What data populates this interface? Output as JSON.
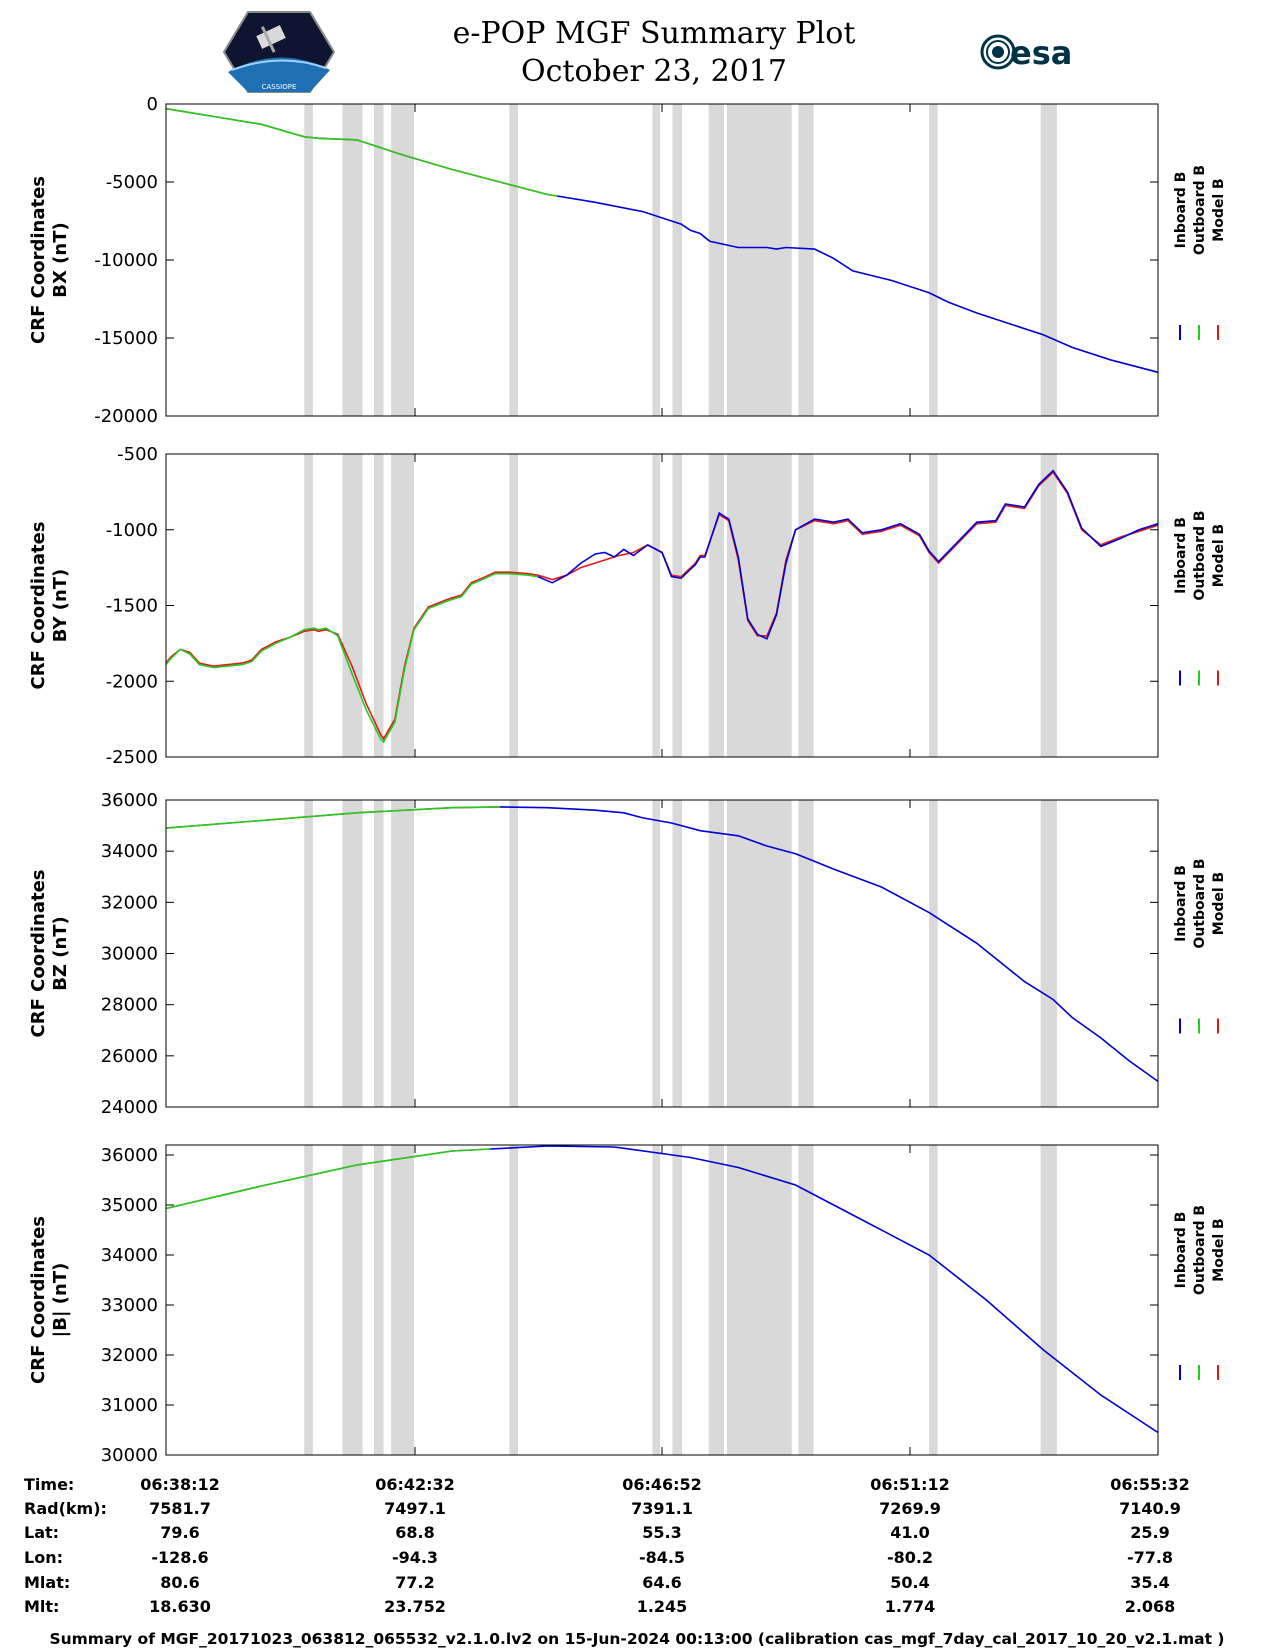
{
  "title_line1": "e-POP MGF Summary Plot",
  "title_line2": "October 23, 2017",
  "esa_logo_text": "esa",
  "cassiope_logo_text": "CASSIOPE",
  "footer": "Summary of MGF_20171023_063812_065532_v2.1.0.lv2 on 15-Jun-2024 00:13:00 (calibration cas_mgf_7day_cal_2017_10_20_v2.1.mat )",
  "colors": {
    "inboard": "#0000d6",
    "outboard": "#22cc22",
    "model": "#e81818",
    "gap": "#d9d9d9"
  },
  "legend": [
    "Inboard B",
    "Outboard B",
    "Model B"
  ],
  "orbit_table": {
    "labels": [
      "Time:",
      "Rad(km):",
      "Lat:",
      "Lon:",
      "Mlat:",
      "Mlt:"
    ],
    "columns": [
      [
        "06:38:12",
        "7581.7",
        "79.6",
        "-128.6",
        "80.6",
        "18.630"
      ],
      [
        "06:42:32",
        "7497.1",
        "68.8",
        "-94.3",
        "77.2",
        "23.752"
      ],
      [
        "06:46:52",
        "7391.1",
        "55.3",
        "-84.5",
        "64.6",
        "1.245"
      ],
      [
        "06:51:12",
        "7269.9",
        "41.0",
        "-80.2",
        "50.4",
        "1.774"
      ],
      [
        "06:55:32",
        "7140.9",
        "25.9",
        "-77.8",
        "35.4",
        "2.068"
      ]
    ]
  },
  "chart_data": [
    {
      "type": "line",
      "title": "CRF Coordinates BX (nT)",
      "ylabel_line1": "CRF Coordinates",
      "ylabel_line2": "BX (nT)",
      "xlim": [
        0,
        1040
      ],
      "x_unit": "seconds since 06:38:12",
      "ylim": [
        -20000,
        0
      ],
      "yticks": [
        0,
        -5000,
        -10000,
        -15000,
        -20000
      ],
      "yticklabels": [
        "0",
        "-5000",
        "-10000",
        "-15000",
        "-20000"
      ],
      "gaps": [
        [
          145,
          154
        ],
        [
          185,
          206
        ],
        [
          218,
          228
        ],
        [
          236,
          260
        ],
        [
          360,
          369
        ],
        [
          510,
          518
        ],
        [
          531,
          541
        ],
        [
          569,
          585
        ],
        [
          588,
          656
        ],
        [
          663,
          679
        ],
        [
          800,
          809
        ],
        [
          917,
          934
        ]
      ],
      "series": [
        {
          "name": "Model B",
          "color_key": "model",
          "x": [
            0,
            50,
            100,
            145,
            160,
            180,
            200,
            250,
            300,
            350,
            400,
            410
          ],
          "y": [
            -300,
            -800,
            -1300,
            -2100,
            -2200,
            -2250,
            -2300,
            -3300,
            -4200,
            -5000,
            -5800,
            -5900
          ]
        },
        {
          "name": "Outboard B",
          "color_key": "outboard",
          "x": [
            0,
            50,
            100,
            145,
            160,
            180,
            200,
            250,
            300,
            350,
            400,
            410
          ],
          "y": [
            -300,
            -800,
            -1300,
            -2100,
            -2200,
            -2250,
            -2300,
            -3300,
            -4200,
            -5000,
            -5800,
            -5900
          ]
        },
        {
          "name": "Inboard B",
          "color_key": "inboard",
          "x": [
            410,
            450,
            500,
            540,
            550,
            560,
            570,
            600,
            630,
            640,
            650,
            680,
            700,
            720,
            760,
            800,
            820,
            850,
            880,
            920,
            950,
            990,
            1040
          ],
          "y": [
            -5900,
            -6300,
            -6900,
            -7700,
            -8100,
            -8300,
            -8800,
            -9200,
            -9200,
            -9300,
            -9200,
            -9300,
            -9900,
            -10700,
            -11300,
            -12100,
            -12700,
            -13400,
            -14000,
            -14800,
            -15600,
            -16400,
            -17200
          ]
        }
      ]
    },
    {
      "type": "line",
      "title": "CRF Coordinates BY (nT)",
      "ylabel_line1": "CRF Coordinates",
      "ylabel_line2": "BY (nT)",
      "xlim": [
        0,
        1040
      ],
      "x_unit": "seconds since 06:38:12",
      "ylim": [
        -2500,
        -500
      ],
      "yticks": [
        -500,
        -1000,
        -1500,
        -2000,
        -2500
      ],
      "yticklabels": [
        "-500",
        "-1000",
        "-1500",
        "-2000",
        "-2500"
      ],
      "gaps": [
        [
          145,
          154
        ],
        [
          185,
          206
        ],
        [
          218,
          228
        ],
        [
          236,
          260
        ],
        [
          360,
          369
        ],
        [
          510,
          518
        ],
        [
          531,
          541
        ],
        [
          569,
          585
        ],
        [
          588,
          656
        ],
        [
          663,
          679
        ],
        [
          800,
          809
        ],
        [
          917,
          934
        ]
      ],
      "series": [
        {
          "name": "Model B",
          "color_key": "model",
          "x": [
            0,
            5,
            15,
            25,
            35,
            50,
            65,
            80,
            90,
            100,
            115,
            130,
            145,
            155,
            160,
            168,
            180,
            195,
            210,
            225,
            228,
            240,
            250,
            260,
            275,
            295,
            310,
            320,
            335,
            345,
            360,
            380,
            390,
            405,
            420,
            435,
            460,
            475,
            490,
            505,
            520,
            530,
            540,
            555,
            560,
            565,
            580,
            590,
            600,
            610,
            620,
            630,
            640,
            650,
            660,
            680,
            700,
            715,
            730,
            750,
            770,
            790,
            800,
            810,
            830,
            850,
            870,
            880,
            900,
            915,
            930,
            945,
            960,
            980,
            1000,
            1020,
            1030,
            1040
          ],
          "y": [
            -1880,
            -1840,
            -1790,
            -1810,
            -1880,
            -1900,
            -1890,
            -1880,
            -1860,
            -1790,
            -1740,
            -1710,
            -1670,
            -1660,
            -1670,
            -1660,
            -1690,
            -1900,
            -2150,
            -2350,
            -2380,
            -2250,
            -1900,
            -1650,
            -1510,
            -1460,
            -1430,
            -1350,
            -1310,
            -1280,
            -1280,
            -1290,
            -1300,
            -1330,
            -1300,
            -1250,
            -1200,
            -1170,
            -1150,
            -1100,
            -1150,
            -1300,
            -1310,
            -1220,
            -1170,
            -1170,
            -900,
            -940,
            -1200,
            -1600,
            -1700,
            -1700,
            -1550,
            -1200,
            -1000,
            -940,
            -960,
            -940,
            -1030,
            -1010,
            -970,
            -1040,
            -1150,
            -1220,
            -1090,
            -960,
            -950,
            -840,
            -860,
            -710,
            -620,
            -760,
            -1000,
            -1100,
            -1050,
            -1010,
            -990,
            -970
          ]
        },
        {
          "name": "Outboard B",
          "color_key": "outboard",
          "x": [
            0,
            5,
            15,
            25,
            35,
            50,
            65,
            80,
            90,
            100,
            115,
            130,
            145,
            155,
            160,
            168,
            180,
            195,
            210,
            225,
            228,
            240,
            250,
            260,
            275,
            295,
            310,
            320,
            335,
            345,
            360,
            380,
            390
          ],
          "y": [
            -1890,
            -1850,
            -1790,
            -1820,
            -1890,
            -1910,
            -1900,
            -1890,
            -1870,
            -1800,
            -1750,
            -1710,
            -1660,
            -1650,
            -1660,
            -1650,
            -1700,
            -1950,
            -2190,
            -2380,
            -2400,
            -2270,
            -1920,
            -1660,
            -1520,
            -1470,
            -1440,
            -1360,
            -1320,
            -1290,
            -1290,
            -1300,
            -1310
          ]
        },
        {
          "name": "Inboard B",
          "color_key": "inboard",
          "x": [
            390,
            405,
            420,
            435,
            450,
            460,
            470,
            480,
            490,
            505,
            520,
            530,
            540,
            555,
            560,
            565,
            580,
            590,
            600,
            610,
            620,
            630,
            640,
            650,
            660,
            680,
            700,
            715,
            730,
            750,
            770,
            790,
            800,
            810,
            830,
            850,
            870,
            880,
            900,
            915,
            930,
            945,
            960,
            980,
            1000,
            1020,
            1030,
            1040
          ],
          "y": [
            -1310,
            -1350,
            -1300,
            -1220,
            -1160,
            -1150,
            -1180,
            -1130,
            -1170,
            -1100,
            -1150,
            -1310,
            -1320,
            -1230,
            -1180,
            -1180,
            -890,
            -930,
            -1180,
            -1590,
            -1690,
            -1720,
            -1560,
            -1220,
            -1000,
            -930,
            -950,
            -930,
            -1020,
            -1000,
            -960,
            -1030,
            -1140,
            -1210,
            -1080,
            -950,
            -940,
            -830,
            -850,
            -700,
            -610,
            -750,
            -990,
            -1110,
            -1060,
            -1000,
            -980,
            -960
          ]
        }
      ]
    },
    {
      "type": "line",
      "title": "CRF Coordinates BZ (nT)",
      "ylabel_line1": "CRF Coordinates",
      "ylabel_line2": "BZ (nT)",
      "xlim": [
        0,
        1040
      ],
      "x_unit": "seconds since 06:38:12",
      "ylim": [
        24000,
        36000
      ],
      "yticks": [
        36000,
        34000,
        32000,
        30000,
        28000,
        26000,
        24000
      ],
      "yticklabels": [
        "36000",
        "34000",
        "32000",
        "30000",
        "28000",
        "26000",
        "24000"
      ],
      "gaps": [
        [
          145,
          154
        ],
        [
          185,
          206
        ],
        [
          218,
          228
        ],
        [
          236,
          260
        ],
        [
          360,
          369
        ],
        [
          510,
          518
        ],
        [
          531,
          541
        ],
        [
          569,
          585
        ],
        [
          588,
          656
        ],
        [
          663,
          679
        ],
        [
          800,
          809
        ],
        [
          917,
          934
        ]
      ],
      "series": [
        {
          "name": "Model B",
          "color_key": "model",
          "x": [
            0,
            100,
            200,
            300,
            350
          ],
          "y": [
            34900,
            35200,
            35500,
            35700,
            35730
          ]
        },
        {
          "name": "Outboard B",
          "color_key": "outboard",
          "x": [
            0,
            100,
            200,
            300,
            350
          ],
          "y": [
            34900,
            35200,
            35500,
            35700,
            35730
          ]
        },
        {
          "name": "Inboard B",
          "color_key": "inboard",
          "x": [
            350,
            400,
            450,
            480,
            500,
            530,
            560,
            600,
            630,
            660,
            680,
            700,
            750,
            800,
            850,
            900,
            930,
            950,
            980,
            1010,
            1040
          ],
          "y": [
            35730,
            35700,
            35600,
            35500,
            35300,
            35100,
            34800,
            34600,
            34200,
            33900,
            33600,
            33300,
            32600,
            31600,
            30400,
            28900,
            28200,
            27500,
            26700,
            25800,
            25000
          ]
        }
      ]
    },
    {
      "type": "line",
      "title": "CRF Coordinates |B| (nT)",
      "ylabel_line1": "CRF Coordinates",
      "ylabel_line2": "|B| (nT)",
      "xlim": [
        0,
        1040
      ],
      "x_unit": "seconds since 06:38:12",
      "ylim": [
        30000,
        36200
      ],
      "yticks": [
        36000,
        35000,
        34000,
        33000,
        32000,
        31000,
        30000
      ],
      "yticklabels": [
        "36000",
        "35000",
        "34000",
        "33000",
        "32000",
        "31000",
        "30000"
      ],
      "gaps": [
        [
          145,
          154
        ],
        [
          185,
          206
        ],
        [
          218,
          228
        ],
        [
          236,
          260
        ],
        [
          360,
          369
        ],
        [
          510,
          518
        ],
        [
          531,
          541
        ],
        [
          569,
          585
        ],
        [
          588,
          656
        ],
        [
          663,
          679
        ],
        [
          800,
          809
        ],
        [
          917,
          934
        ]
      ],
      "series": [
        {
          "name": "Model B",
          "color_key": "model",
          "x": [
            0,
            100,
            200,
            300,
            340
          ],
          "y": [
            34930,
            35380,
            35800,
            36080,
            36120
          ]
        },
        {
          "name": "Outboard B",
          "color_key": "outboard",
          "x": [
            0,
            100,
            200,
            300,
            340
          ],
          "y": [
            34930,
            35380,
            35800,
            36080,
            36120
          ]
        },
        {
          "name": "Inboard B",
          "color_key": "inboard",
          "x": [
            340,
            400,
            470,
            550,
            600,
            660,
            720,
            800,
            860,
            920,
            980,
            1040
          ],
          "y": [
            36120,
            36180,
            36160,
            35950,
            35750,
            35400,
            34800,
            34000,
            33100,
            32100,
            31200,
            30450
          ]
        }
      ]
    }
  ]
}
